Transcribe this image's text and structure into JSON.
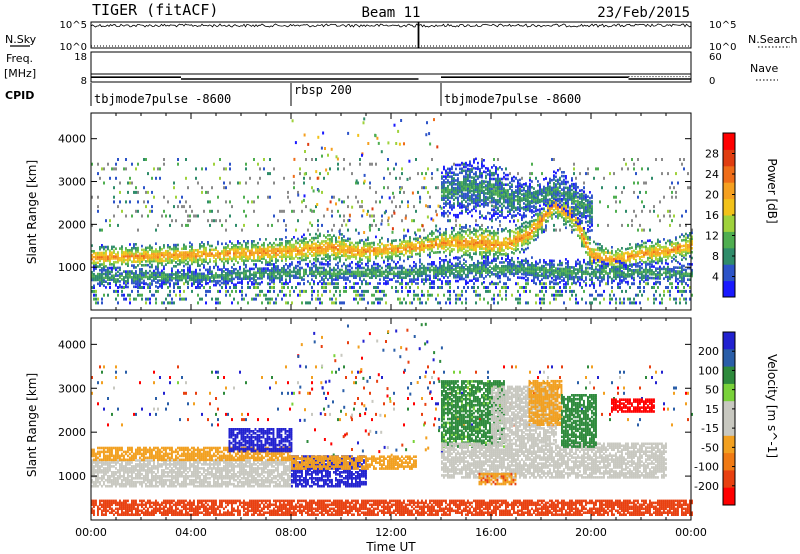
{
  "header": {
    "radar": "TIGER (fitACF)",
    "beam": "Beam 11",
    "date": "23/Feb/2015"
  },
  "colors": {
    "power_scale": [
      "#1a1aff",
      "#2d54c8",
      "#2f8c6a",
      "#4fae50",
      "#9fd23c",
      "#f2c21a",
      "#f5a020",
      "#ef6d18",
      "#e03d10",
      "#ff0000"
    ],
    "velocity_scale": [
      "#2222d0",
      "#2a5ea8",
      "#2e8a3c",
      "#7ad23a",
      "#c8c8c0",
      "#c8c8c0",
      "#f2a020",
      "#f07a14",
      "#e84010",
      "#ff0000"
    ],
    "noise": "#808080"
  },
  "chart_data": [
    {
      "type": "line",
      "name": "status-nsky",
      "ylabel_left": "N.Sky",
      "ylabel_right": "N.Search",
      "left_ticks": [
        "10^5",
        "10^0"
      ],
      "right_ticks": [
        "10^5",
        "10^0"
      ],
      "dropout_hours": [
        13.1
      ]
    },
    {
      "type": "line",
      "name": "status-freq",
      "ylabel_left": "Freq.",
      "ylabel_left_unit": "[MHz]",
      "ylabel_right": "Nave",
      "left_ticks": [
        18,
        8
      ],
      "right_ticks": [
        60,
        0
      ],
      "freq_segments": [
        {
          "start": 0,
          "end": 3.6,
          "mhz": 9.6
        },
        {
          "start": 3.6,
          "end": 13.1,
          "mhz": 9.0
        },
        {
          "start": 14.0,
          "end": 21.5,
          "mhz": 9.6
        },
        {
          "start": 21.5,
          "end": 24,
          "mhz": 9.0
        }
      ]
    },
    {
      "type": "table",
      "name": "cpid",
      "label": "CPID",
      "modes": [
        {
          "start": 0,
          "end": 8.0,
          "text": "tbjmode7pulse -8600"
        },
        {
          "start": 8.0,
          "end": 14.0,
          "text": "rbsp 200"
        },
        {
          "start": 14.0,
          "end": 24,
          "text": "tbjmode7pulse -8600"
        }
      ]
    },
    {
      "type": "heatmap",
      "name": "power-panel",
      "ylabel": "Slant Range [km]",
      "xlim": [
        0,
        24
      ],
      "ylim": [
        0,
        4600
      ],
      "yticks": [
        1000,
        2000,
        3000,
        4000
      ],
      "colorbar": {
        "label": "Power [dB]",
        "range": [
          0,
          32
        ],
        "ticks": [
          4,
          8,
          12,
          16,
          20,
          24,
          28
        ]
      },
      "bands": [
        {
          "t": [
            0,
            3,
            6,
            8,
            9.5,
            10.5,
            12,
            13,
            14,
            15.5,
            16.5,
            17.5,
            18.5,
            19.3,
            20,
            21,
            22,
            23,
            24
          ],
          "center": [
            1250,
            1300,
            1350,
            1400,
            1500,
            1400,
            1450,
            1500,
            1600,
            1600,
            1550,
            1800,
            2500,
            2200,
            1300,
            1200,
            1350,
            1400,
            1550
          ],
          "width": [
            300,
            300,
            300,
            350,
            400,
            350,
            300,
            300,
            350,
            450,
            400,
            350,
            350,
            400,
            350,
            300,
            300,
            300,
            350
          ],
          "peak_db": 22
        },
        {
          "t": [
            0,
            4,
            8,
            13,
            14,
            17,
            18,
            20,
            22,
            24
          ],
          "center": [
            800,
            800,
            900,
            900,
            950,
            1000,
            950,
            900,
            900,
            850
          ],
          "width": [
            250,
            200,
            250,
            250,
            300,
            300,
            300,
            300,
            250,
            250
          ],
          "peak_db": 10
        },
        {
          "t": [
            14,
            15,
            16,
            17,
            18,
            18.7,
            19.3,
            20
          ],
          "center": [
            2800,
            2900,
            2800,
            2600,
            2700,
            2900,
            2600,
            2300
          ],
          "width": [
            600,
            700,
            700,
            500,
            400,
            450,
            500,
            500
          ],
          "peak_db": 9
        }
      ]
    },
    {
      "type": "heatmap",
      "name": "velocity-panel",
      "xlabel": "Time UT",
      "ylabel": "Slant Range [km]",
      "xlim": [
        0,
        24
      ],
      "ylim": [
        0,
        4600
      ],
      "yticks": [
        1000,
        2000,
        3000,
        4000
      ],
      "xticks": [
        "00:00",
        "04:00",
        "08:00",
        "12:00",
        "16:00",
        "20:00",
        "00:00"
      ],
      "colorbar": {
        "label": "Velocity [m s^-1]",
        "ticks": [
          200,
          100,
          50,
          15,
          -15,
          -50,
          -100,
          -200
        ]
      },
      "regions": [
        {
          "t0": 0,
          "t1": 8,
          "r0": 800,
          "r1": 1400,
          "vel": -5
        },
        {
          "t0": 0,
          "t1": 8,
          "r0": 1400,
          "r1": 1700,
          "vel": -60
        },
        {
          "t0": 5.5,
          "t1": 8,
          "r0": 1600,
          "r1": 2100,
          "vel": 180
        },
        {
          "t0": 8,
          "t1": 11,
          "r0": 800,
          "r1": 1500,
          "vel": 160
        },
        {
          "t0": 8,
          "t1": 13,
          "r0": 1200,
          "r1": 1500,
          "vel": -60
        },
        {
          "t0": 14,
          "t1": 16.5,
          "r0": 1700,
          "r1": 3200,
          "vel": 40
        },
        {
          "t0": 14,
          "t1": 23,
          "r0": 1000,
          "r1": 1800,
          "vel": 0
        },
        {
          "t0": 16,
          "t1": 18.6,
          "r0": 1800,
          "r1": 3100,
          "vel": -5
        },
        {
          "t0": 17.5,
          "t1": 18.8,
          "r0": 2200,
          "r1": 3200,
          "vel": -60
        },
        {
          "t0": 18.8,
          "t1": 20.2,
          "r0": 1700,
          "r1": 2900,
          "vel": 50
        },
        {
          "t0": 15.5,
          "t1": 17,
          "r0": 850,
          "r1": 1100,
          "vel": -70
        },
        {
          "t0": 20.8,
          "t1": 22.5,
          "r0": 2500,
          "r1": 2800,
          "vel": -180
        },
        {
          "t0": 0,
          "t1": 24,
          "r0": 150,
          "r1": 500,
          "vel": -90
        }
      ]
    }
  ]
}
